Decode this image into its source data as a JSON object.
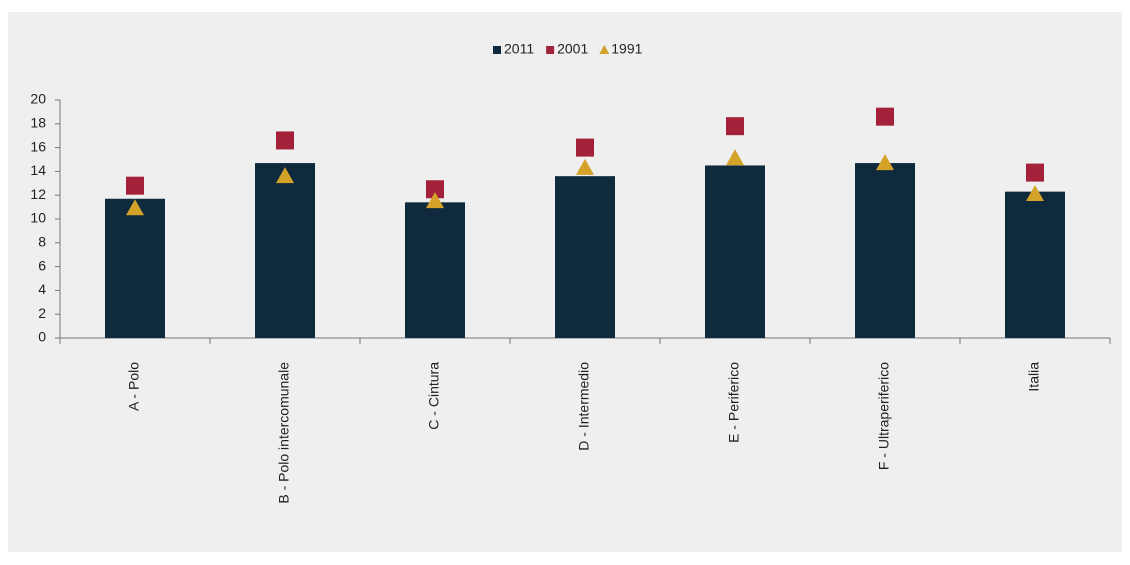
{
  "chart_data": {
    "type": "bar",
    "categories": [
      "A - Polo",
      "B - Polo intercomunale",
      "C - Cintura",
      "D - Intermedio",
      "E - Periferico",
      "F - Ultraperiferico",
      "Italia"
    ],
    "series": [
      {
        "name": "2011",
        "color": "#0e2a3c",
        "marker": "bar",
        "values": [
          11.7,
          14.7,
          11.4,
          13.6,
          14.5,
          14.7,
          12.3
        ]
      },
      {
        "name": "2001",
        "color": "#a3223a",
        "marker": "square",
        "values": [
          12.8,
          16.6,
          12.5,
          16.0,
          17.8,
          18.6,
          13.9
        ]
      },
      {
        "name": "1991",
        "color": "#d5a229",
        "marker": "triangle",
        "values": [
          10.9,
          13.6,
          11.5,
          14.3,
          15.1,
          14.7,
          12.1
        ]
      }
    ],
    "ylim": [
      0,
      20
    ],
    "yticks": [
      0,
      2,
      4,
      6,
      8,
      10,
      12,
      14,
      16,
      18,
      20
    ],
    "grid": false,
    "legend": "top"
  }
}
